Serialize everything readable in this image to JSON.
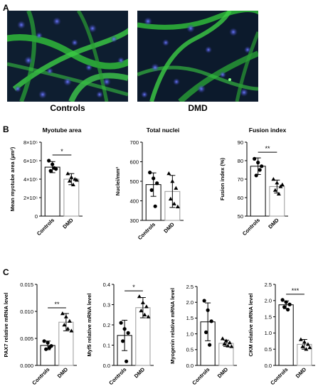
{
  "panels": {
    "A": {
      "letter": "A",
      "images": [
        {
          "label": "Controls"
        },
        {
          "label": "DMD"
        }
      ]
    },
    "B": {
      "letter": "B"
    },
    "C": {
      "letter": "C"
    }
  },
  "chart_data": [
    {
      "panel": "B",
      "type": "bar",
      "title": "Myotube area",
      "ylabel": "Mean myotube area (µm²)",
      "ytick_labels": [
        "0",
        "2×10⁵",
        "4×10⁵",
        "6×10⁵",
        "8×10⁵"
      ],
      "ylim": [
        0,
        800000
      ],
      "categories": [
        "Controls",
        "DMD"
      ],
      "values": [
        530000,
        400000
      ],
      "errors": [
        60000,
        60000
      ],
      "points": [
        [
          600000,
          560000,
          510000,
          490000,
          520000
        ],
        [
          460000,
          420000,
          400000,
          380000,
          340000,
          390000
        ]
      ],
      "significance": "*"
    },
    {
      "panel": "B",
      "type": "bar",
      "title": "Total nuclei",
      "ylabel": "Nuclei/mm²",
      "ytick_labels": [
        "300",
        "400",
        "500",
        "600",
        "700"
      ],
      "ylim": [
        300,
        700
      ],
      "categories": [
        "Controls",
        "DMD"
      ],
      "values": [
        483,
        448
      ],
      "errors": [
        60,
        82
      ],
      "points": [
        [
          545,
          515,
          490,
          455,
          372
        ],
        [
          540,
          500,
          465,
          410,
          385,
          370
        ]
      ],
      "significance": ""
    },
    {
      "panel": "B",
      "type": "bar",
      "title": "Fusion index",
      "ylabel": "Fusion index (%)",
      "ytick_labels": [
        "50",
        "60",
        "70",
        "80",
        "90"
      ],
      "ylim": [
        50,
        90
      ],
      "categories": [
        "Controls",
        "DMD"
      ],
      "values": [
        77,
        66
      ],
      "errors": [
        4.5,
        3.5
      ],
      "points": [
        [
          81,
          79,
          77,
          72,
          75
        ],
        [
          70,
          68,
          66,
          64,
          62,
          67
        ]
      ],
      "significance": "**"
    },
    {
      "panel": "C",
      "type": "bar",
      "title": "",
      "ylabel": "PAX7 relative mRNA level",
      "ytick_labels": [
        "0.000",
        "0.005",
        "0.010",
        "0.015"
      ],
      "ylim": [
        0,
        0.015
      ],
      "categories": [
        "Controls",
        "DMD"
      ],
      "values": [
        0.0037,
        0.008
      ],
      "errors": [
        0.0008,
        0.0016
      ],
      "points": [
        [
          0.0045,
          0.0042,
          0.0036,
          0.003,
          0.0033
        ],
        [
          0.0096,
          0.009,
          0.0082,
          0.0075,
          0.0068,
          0.0064
        ]
      ],
      "significance": "**"
    },
    {
      "panel": "C",
      "type": "bar",
      "title": "",
      "ylabel": "Myf5 relative mRNA level",
      "ytick_labels": [
        "0.0",
        "0.1",
        "0.2",
        "0.3",
        "0.4"
      ],
      "ylim": [
        0,
        0.4
      ],
      "categories": [
        "Controls",
        "DMD"
      ],
      "values": [
        0.148,
        0.285
      ],
      "errors": [
        0.075,
        0.05
      ],
      "points": [
        [
          0.21,
          0.18,
          0.16,
          0.12,
          0.02
        ],
        [
          0.34,
          0.31,
          0.29,
          0.27,
          0.25,
          0.24
        ]
      ],
      "significance": "*"
    },
    {
      "panel": "C",
      "type": "bar",
      "title": "",
      "ylabel": "Myogenin relative mRNA level",
      "ytick_labels": [
        "0.0",
        "0.5",
        "1.0",
        "1.5",
        "2.0",
        "2.5"
      ],
      "ylim": [
        0,
        2.5
      ],
      "categories": [
        "Controls",
        "DMD"
      ],
      "values": [
        1.38,
        0.7
      ],
      "errors": [
        0.6,
        0.1
      ],
      "points": [
        [
          2.05,
          1.75,
          1.4,
          1.05,
          0.65
        ],
        [
          0.85,
          0.78,
          0.72,
          0.68,
          0.62,
          0.6
        ]
      ],
      "significance": ""
    },
    {
      "panel": "C",
      "type": "bar",
      "title": "",
      "ylabel": "CKM relative mRNA level",
      "ytick_labels": [
        "0.0",
        "0.5",
        "1.0",
        "1.5",
        "2.0",
        "2.5"
      ],
      "ylim": [
        0,
        2.5
      ],
      "categories": [
        "Controls",
        "DMD"
      ],
      "values": [
        1.87,
        0.65
      ],
      "errors": [
        0.12,
        0.15
      ],
      "points": [
        [
          2.02,
          1.95,
          1.88,
          1.8,
          1.72
        ],
        [
          0.8,
          0.72,
          0.65,
          0.58,
          0.5,
          0.55
        ]
      ],
      "significance": "***"
    }
  ]
}
